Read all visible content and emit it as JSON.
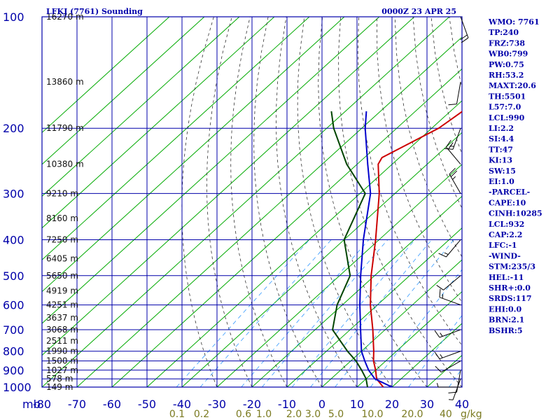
{
  "header": {
    "station_title": "LFKJ (7761) Sounding",
    "valid_time": "0000Z 23 APR 25"
  },
  "indices": [
    "WMO: 7761",
    "TP:240",
    "FRZ:738",
    "WB0:799",
    "PW:0.75",
    "RH:53.2",
    "MAXT:20.6",
    "TH:5501",
    "L57:7.0",
    "LCL:990",
    "LI:2.2",
    "SI:4.4",
    "TT:47",
    "KI:13",
    "SW:15",
    "EI:1.0",
    "-PARCEL-",
    "CAPE:10",
    "CINH:10285",
    "LCL:932",
    "CAP:2.2",
    "LFC:-1",
    "-WIND-",
    "STM:235/3",
    "HEL:-11",
    "SHR+:0.0",
    "SRDS:117",
    "EHI:0.0",
    "BRN:2.1",
    "BSHR:5"
  ],
  "colors": {
    "grid": "#0000aa",
    "isotherm": "#00aa00",
    "dry_adiabat": "#333333",
    "moist_adiabat": "#3399ff",
    "temperature": "#cc0000",
    "dewpoint": "#004400",
    "parcel": "#0000cc",
    "mixing_label": "#7a7a20"
  },
  "chart_data": {
    "type": "line",
    "title": "LFKJ (7761) Sounding",
    "pressure_axis_unit": "mb",
    "mixing_ratio_unit": "g/kg",
    "pressure_levels": [
      100,
      200,
      300,
      400,
      500,
      600,
      700,
      800,
      900,
      1000
    ],
    "pressure_labels": [
      "100",
      "200",
      "300",
      "400",
      "500",
      "600",
      "700",
      "800",
      "900",
      "1000"
    ],
    "temperature_ticks": [
      -80,
      -70,
      -60,
      -50,
      -40,
      -30,
      -20,
      -10,
      0,
      10,
      20,
      30,
      40
    ],
    "temperature_labels": [
      "-80",
      "-70",
      "-60",
      "-50",
      "-40",
      "-30",
      "-20",
      "-10",
      "0",
      "10",
      "20",
      "30",
      "40"
    ],
    "xlim": [
      -80,
      40
    ],
    "ylim": [
      1000,
      100
    ],
    "y_scale": "log",
    "height_labels": [
      {
        "p": 1000,
        "label": "149 m"
      },
      {
        "p": 950,
        "label": "578 m"
      },
      {
        "p": 900,
        "label": "1027 m"
      },
      {
        "p": 850,
        "label": "1500 m"
      },
      {
        "p": 800,
        "label": "1990 m"
      },
      {
        "p": 750,
        "label": "2511 m"
      },
      {
        "p": 700,
        "label": "3068 m"
      },
      {
        "p": 650,
        "label": "3637 m"
      },
      {
        "p": 600,
        "label": "4251 m"
      },
      {
        "p": 550,
        "label": "4919 m"
      },
      {
        "p": 500,
        "label": "5650 m"
      },
      {
        "p": 450,
        "label": "6405 m"
      },
      {
        "p": 400,
        "label": "7250 m"
      },
      {
        "p": 350,
        "label": "8160 m"
      },
      {
        "p": 300,
        "label": "9210 m"
      },
      {
        "p": 250,
        "label": "10380 m"
      },
      {
        "p": 200,
        "label": "11790 m"
      },
      {
        "p": 150,
        "label": "13860 m"
      },
      {
        "p": 100,
        "label": "16270 m"
      }
    ],
    "mixing_ratio_lines": [
      {
        "value": 0.1,
        "label": "0.1"
      },
      {
        "value": 0.2,
        "label": "0.2"
      },
      {
        "value": 0.6,
        "label": "0.6"
      },
      {
        "value": 1.0,
        "label": "1.0"
      },
      {
        "value": 2.0,
        "label": "2.0"
      },
      {
        "value": 3.0,
        "label": "3.0"
      },
      {
        "value": 5.0,
        "label": "5.0"
      },
      {
        "value": 10.0,
        "label": "10.0"
      },
      {
        "value": 20.0,
        "label": "20.0"
      },
      {
        "value": 40.0,
        "label": "40"
      }
    ],
    "series": [
      {
        "name": "temperature",
        "points": [
          [
            1000,
            17.5
          ],
          [
            950,
            13.0
          ],
          [
            900,
            10.0
          ],
          [
            850,
            6.5
          ],
          [
            800,
            3.5
          ],
          [
            700,
            -3.5
          ],
          [
            600,
            -12.0
          ],
          [
            500,
            -21.0
          ],
          [
            400,
            -31.0
          ],
          [
            300,
            -44.5
          ],
          [
            250,
            -54.0
          ],
          [
            240,
            -55.0
          ],
          [
            200,
            -48.0
          ],
          [
            150,
            -44.0
          ],
          [
            100,
            -48.5
          ]
        ]
      },
      {
        "name": "dewpoint",
        "points": [
          [
            1000,
            13.0
          ],
          [
            950,
            10.0
          ],
          [
            900,
            6.0
          ],
          [
            850,
            1.5
          ],
          [
            800,
            -4.0
          ],
          [
            700,
            -15.0
          ],
          [
            600,
            -21.5
          ],
          [
            500,
            -27.0
          ],
          [
            400,
            -40.0
          ],
          [
            300,
            -48.5
          ],
          [
            250,
            -63.0
          ],
          [
            200,
            -78.0
          ],
          [
            180,
            -84.0
          ]
        ]
      },
      {
        "name": "parcel",
        "points": [
          [
            1000,
            20.0
          ],
          [
            950,
            12.5
          ],
          [
            900,
            8.0
          ],
          [
            850,
            4.0
          ],
          [
            800,
            0.0
          ],
          [
            700,
            -7.0
          ],
          [
            600,
            -15.0
          ],
          [
            500,
            -24.0
          ],
          [
            400,
            -34.5
          ],
          [
            300,
            -47.0
          ],
          [
            250,
            -57.0
          ],
          [
            200,
            -69.0
          ],
          [
            180,
            -74.0
          ]
        ]
      }
    ],
    "wind_barbs": [
      {
        "p": 1000,
        "dir": 270,
        "spd": 5
      },
      {
        "p": 950,
        "dir": 200,
        "spd": 5
      },
      {
        "p": 900,
        "dir": 190,
        "spd": 10
      },
      {
        "p": 850,
        "dir": 240,
        "spd": 10
      },
      {
        "p": 800,
        "dir": 250,
        "spd": 15
      },
      {
        "p": 700,
        "dir": 250,
        "spd": 15
      },
      {
        "p": 600,
        "dir": 290,
        "spd": 15
      },
      {
        "p": 500,
        "dir": 230,
        "spd": 10
      },
      {
        "p": 400,
        "dir": 220,
        "spd": 15
      },
      {
        "p": 300,
        "dir": 330,
        "spd": 25
      },
      {
        "p": 250,
        "dir": 320,
        "spd": 20
      },
      {
        "p": 200,
        "dir": 200,
        "spd": 15
      },
      {
        "p": 150,
        "dir": 190,
        "spd": 10
      },
      {
        "p": 100,
        "dir": 160,
        "spd": 20
      }
    ]
  }
}
